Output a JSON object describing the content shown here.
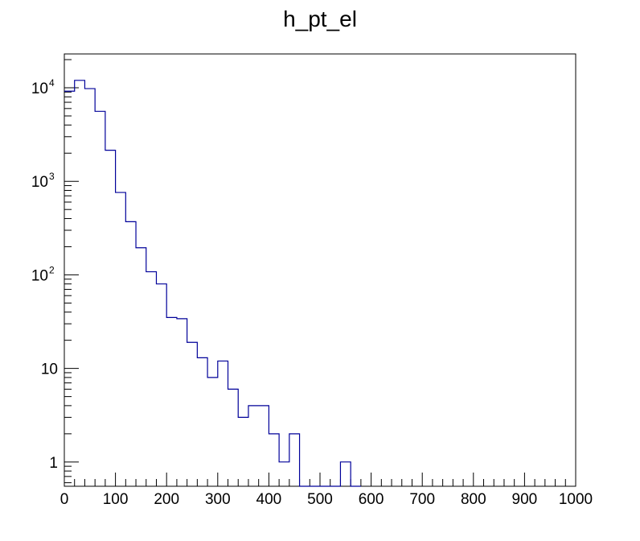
{
  "chart_data": {
    "type": "histogram",
    "title": "h_pt_el",
    "xlim": [
      0,
      1000
    ],
    "ylim": [
      0.55,
      23000
    ],
    "yscale": "log",
    "bin_width": 20,
    "line_color": "#000099",
    "x_ticks": [
      {
        "value": 0,
        "label": "0"
      },
      {
        "value": 100,
        "label": "100"
      },
      {
        "value": 200,
        "label": "200"
      },
      {
        "value": 300,
        "label": "300"
      },
      {
        "value": 400,
        "label": "400"
      },
      {
        "value": 500,
        "label": "500"
      },
      {
        "value": 600,
        "label": "600"
      },
      {
        "value": 700,
        "label": "700"
      },
      {
        "value": 800,
        "label": "800"
      },
      {
        "value": 900,
        "label": "900"
      },
      {
        "value": 1000,
        "label": "1000"
      }
    ],
    "y_ticks": [
      {
        "value": 1,
        "base": "1",
        "exp": ""
      },
      {
        "value": 10,
        "base": "10",
        "exp": ""
      },
      {
        "value": 100,
        "base": "10",
        "exp": "2"
      },
      {
        "value": 1000,
        "base": "10",
        "exp": "3"
      },
      {
        "value": 10000,
        "base": "10",
        "exp": "4"
      }
    ],
    "bins": [
      {
        "x": 0,
        "y": 9200
      },
      {
        "x": 20,
        "y": 12000
      },
      {
        "x": 40,
        "y": 9800
      },
      {
        "x": 60,
        "y": 5600
      },
      {
        "x": 80,
        "y": 2150
      },
      {
        "x": 100,
        "y": 760
      },
      {
        "x": 120,
        "y": 370
      },
      {
        "x": 140,
        "y": 195
      },
      {
        "x": 160,
        "y": 108
      },
      {
        "x": 180,
        "y": 80
      },
      {
        "x": 200,
        "y": 35
      },
      {
        "x": 220,
        "y": 34
      },
      {
        "x": 240,
        "y": 19
      },
      {
        "x": 260,
        "y": 13
      },
      {
        "x": 280,
        "y": 8
      },
      {
        "x": 300,
        "y": 12
      },
      {
        "x": 320,
        "y": 6
      },
      {
        "x": 340,
        "y": 3
      },
      {
        "x": 360,
        "y": 4
      },
      {
        "x": 380,
        "y": 4
      },
      {
        "x": 400,
        "y": 2
      },
      {
        "x": 420,
        "y": 1
      },
      {
        "x": 440,
        "y": 2
      },
      {
        "x": 460,
        "y": 0
      },
      {
        "x": 480,
        "y": 0
      },
      {
        "x": 500,
        "y": 0
      },
      {
        "x": 520,
        "y": 0
      },
      {
        "x": 540,
        "y": 1
      },
      {
        "x": 560,
        "y": 0
      }
    ]
  }
}
